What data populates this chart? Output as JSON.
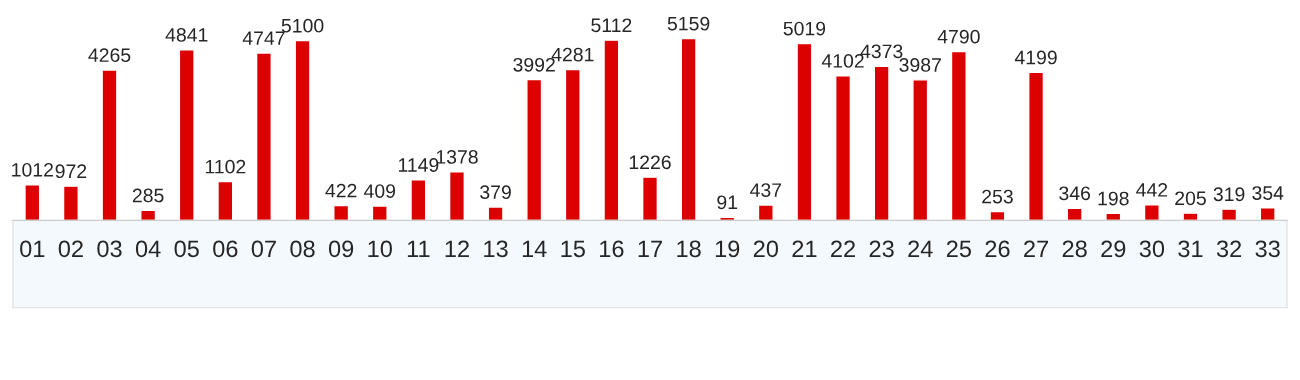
{
  "chart_data": {
    "type": "bar",
    "categories": [
      "01",
      "02",
      "03",
      "04",
      "05",
      "06",
      "07",
      "08",
      "09",
      "10",
      "11",
      "12",
      "13",
      "14",
      "15",
      "16",
      "17",
      "18",
      "19",
      "20",
      "21",
      "22",
      "23",
      "24",
      "25",
      "26",
      "27",
      "28",
      "29",
      "30",
      "31",
      "32",
      "33"
    ],
    "values": [
      1012,
      972,
      4265,
      285,
      4841,
      1102,
      4747,
      5100,
      422,
      409,
      1149,
      1378,
      379,
      3992,
      4281,
      5112,
      1226,
      5159,
      91,
      437,
      5019,
      4102,
      4373,
      3987,
      4790,
      253,
      4199,
      346,
      198,
      442,
      205,
      319,
      354
    ],
    "color": "#dd0000",
    "data_labels": true,
    "tick_labels": "x",
    "grid": false,
    "legend": false
  }
}
